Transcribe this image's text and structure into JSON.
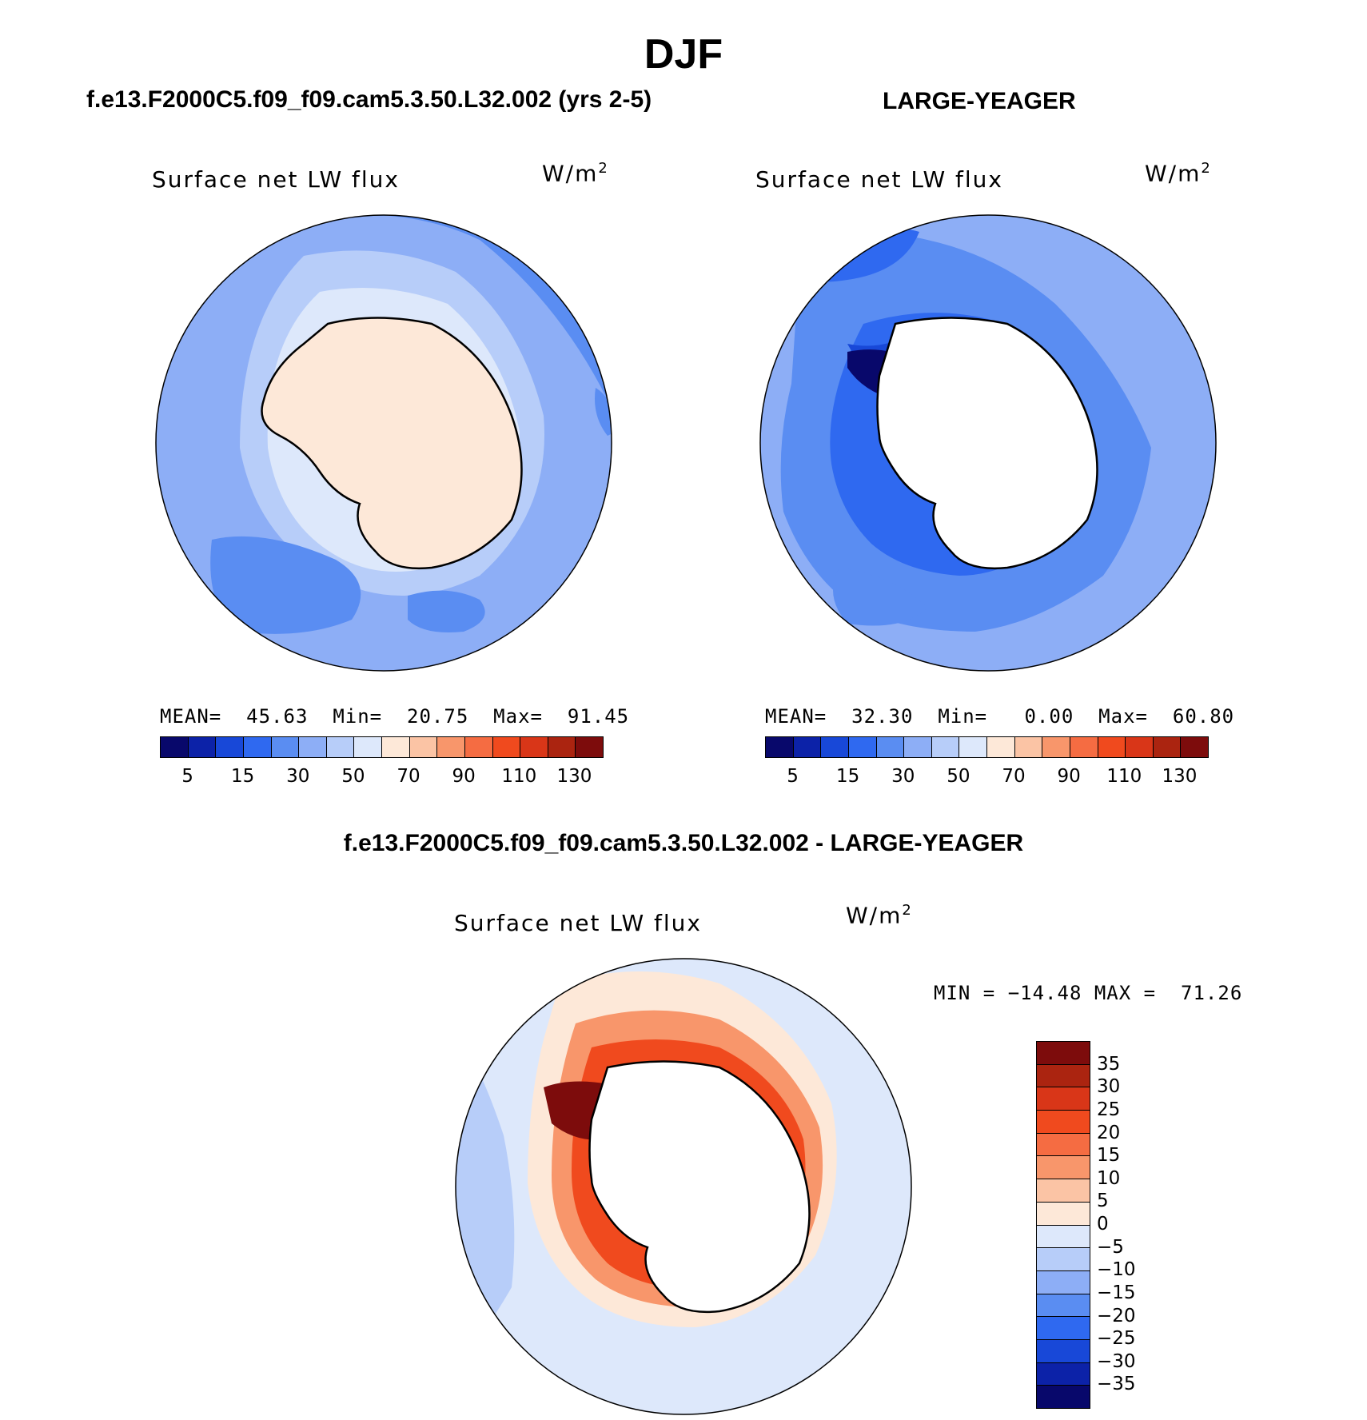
{
  "title": "DJF",
  "colors": {
    "abs_scale": [
      "#08086b",
      "#0c22a8",
      "#1848d8",
      "#2f69f0",
      "#5a8df2",
      "#8daef6",
      "#b7cdf9",
      "#dde8fb",
      "#fde8d8",
      "#fbc4a5",
      "#f8966b",
      "#f56c42",
      "#f04a1e",
      "#d93618",
      "#ab2410",
      "#7d0c0c"
    ],
    "diff_scale": [
      "#7d0c0c",
      "#ab2410",
      "#d93618",
      "#f04a1e",
      "#f56c42",
      "#f8966b",
      "#fbc4a5",
      "#fde8d8",
      "#dde8fb",
      "#b7cdf9",
      "#8daef6",
      "#5a8df2",
      "#2f69f0",
      "#1848d8",
      "#0c22a8",
      "#08086b"
    ]
  },
  "panels": {
    "left": {
      "subtitle": "f.e13.F2000C5.f09_f09.cam5.3.50.L32.002 (yrs 2-5)",
      "map_title": "Surface net LW flux",
      "units": "W/m",
      "units_sup": "2",
      "stats": {
        "mean_label": "MEAN=",
        "mean": "45.63",
        "min_label": "Min=",
        "min": "20.75",
        "max_label": "Max=",
        "max": "91.45"
      },
      "ticks": [
        "5",
        "15",
        "30",
        "50",
        "70",
        "90",
        "110",
        "130"
      ]
    },
    "right": {
      "subtitle": "LARGE-YEAGER",
      "map_title": "Surface net LW flux",
      "units": "W/m",
      "units_sup": "2",
      "stats": {
        "mean_label": "MEAN=",
        "mean": "32.30",
        "min_label": "Min=",
        "min": "0.00",
        "max_label": "Max=",
        "max": "60.80"
      },
      "ticks": [
        "5",
        "15",
        "30",
        "50",
        "70",
        "90",
        "110",
        "130"
      ]
    },
    "bottom": {
      "subtitle": "f.e13.F2000C5.f09_f09.cam5.3.50.L32.002 - LARGE-YEAGER",
      "map_title": "Surface net LW flux",
      "units": "W/m",
      "units_sup": "2",
      "min_label": "MIN =",
      "min": "−14.48",
      "max_label": "MAX =",
      "max": "71.26",
      "ticks": [
        "35",
        "30",
        "25",
        "20",
        "15",
        "10",
        "5",
        "0",
        "−5",
        "−10",
        "−15",
        "−20",
        "−25",
        "−30",
        "−35"
      ]
    }
  }
}
